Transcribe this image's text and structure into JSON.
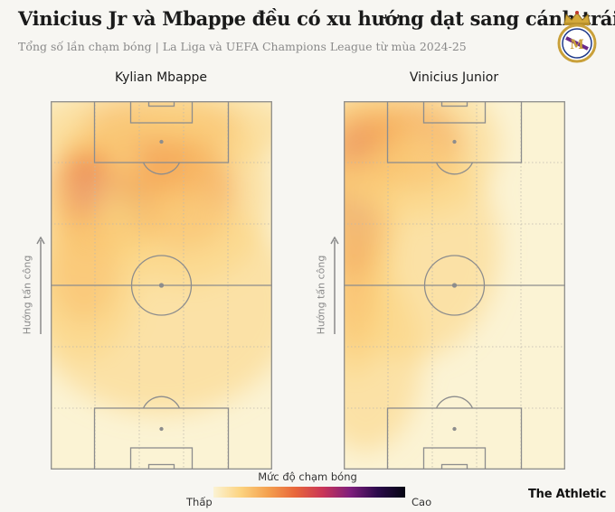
{
  "header": {
    "title": "Vinicius Jr và Mbappe đều có xu hướng dạt sang cánh trái",
    "subtitle": "Tổng số lần chạm bóng | La Liga và UEFA Champions League từ mùa 2024-25"
  },
  "brand": "The Athletic",
  "crest_icon": "real-madrid-crest-icon",
  "legend": {
    "title": "Mức độ chạm bóng",
    "low": "Thấp",
    "high": "Cao",
    "colors": [
      "#fbf3d4",
      "#fcd37f",
      "#f4a04e",
      "#e8663a",
      "#c93558",
      "#7e1e7c",
      "#2b0a4b",
      "#050512"
    ]
  },
  "chart_data": [
    {
      "type": "heatmap",
      "title": "Kylian Mbappe",
      "ylabel": "Hướng tấn công",
      "grid": true,
      "hotspots": [
        {
          "x": 0.5,
          "y": 0.93,
          "w": 0.6,
          "h": 0.12,
          "weight": 0.35
        },
        {
          "x": 0.42,
          "y": 0.83,
          "w": 0.35,
          "h": 0.15,
          "weight": 0.45
        },
        {
          "x": 0.32,
          "y": 0.72,
          "w": 0.22,
          "h": 0.14,
          "weight": 1.0
        },
        {
          "x": 0.18,
          "y": 0.75,
          "w": 0.25,
          "h": 0.18,
          "weight": 0.55
        },
        {
          "x": 0.15,
          "y": 0.55,
          "w": 0.25,
          "h": 0.25,
          "weight": 0.35
        },
        {
          "x": 0.6,
          "y": 0.75,
          "w": 0.4,
          "h": 0.25,
          "weight": 0.25
        },
        {
          "x": 0.5,
          "y": 0.45,
          "w": 0.6,
          "h": 0.3,
          "weight": 0.15
        }
      ]
    },
    {
      "type": "heatmap",
      "title": "Vinicius Junior",
      "ylabel": "Hướng tấn công",
      "grid": true,
      "hotspots": [
        {
          "x": 0.02,
          "y": 0.74,
          "w": 0.14,
          "h": 0.16,
          "weight": 1.1
        },
        {
          "x": 0.06,
          "y": 0.66,
          "w": 0.18,
          "h": 0.22,
          "weight": 0.7
        },
        {
          "x": 0.08,
          "y": 0.88,
          "w": 0.25,
          "h": 0.15,
          "weight": 0.6
        },
        {
          "x": 0.3,
          "y": 0.88,
          "w": 0.4,
          "h": 0.2,
          "weight": 0.35
        },
        {
          "x": 0.05,
          "y": 0.5,
          "w": 0.15,
          "h": 0.25,
          "weight": 0.4
        },
        {
          "x": 0.3,
          "y": 0.6,
          "w": 0.4,
          "h": 0.3,
          "weight": 0.2
        },
        {
          "x": 0.1,
          "y": 0.3,
          "w": 0.25,
          "h": 0.25,
          "weight": 0.15
        }
      ]
    }
  ]
}
